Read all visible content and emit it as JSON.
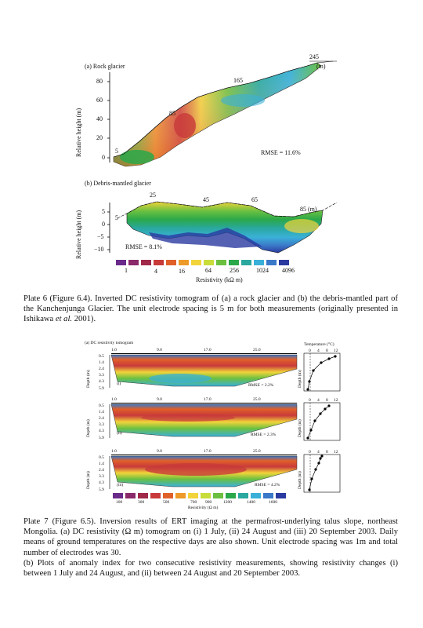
{
  "plate6": {
    "panel_a": {
      "title": "(a) Rock glacier",
      "ylabel": "Relative height (m)",
      "yticks": [
        "80",
        "60",
        "40",
        "20",
        "0"
      ],
      "distance_labels": [
        "5",
        "85",
        "165",
        "245"
      ],
      "unit": "(m)",
      "rmse": "RMSE = 11.6%"
    },
    "panel_b": {
      "title": "(b) Debris-mantled glacier",
      "ylabel": "Relative height (m)",
      "yticks": [
        "5",
        "0",
        "−5",
        "−10"
      ],
      "distance_labels": [
        "5",
        "25",
        "45",
        "65",
        "85 (m)"
      ],
      "rmse": "RMSE = 8.1%"
    },
    "colorbar": {
      "ticks": [
        "1",
        "4",
        "16",
        "64",
        "256",
        "1024",
        "4096"
      ],
      "label": "Resistivity (kΩ m)",
      "colors": [
        "#6a2a8a",
        "#8a2a6a",
        "#a02848",
        "#c83a3a",
        "#e0602a",
        "#ee9a2a",
        "#f2d43a",
        "#c8dc3a",
        "#6cc040",
        "#2aa84a",
        "#2aa8a0",
        "#3ab0d8",
        "#3a78c8",
        "#2a3aa0"
      ]
    },
    "caption_head": "Plate 6 (Figure 6.4).",
    "caption_body": " Inverted DC resistivity tomogram of (a) a rock glacier and (b) the debris-mantled part of the Kanchenjunga Glacier. The unit electrode spacing is 5 m for both measurements (originally presented in Ishikawa ",
    "caption_italic": "et al.",
    "caption_tail": " 2001)."
  },
  "plate7": {
    "panel_title": "(a) DC resistivity tomogram",
    "temp_title": "Temperature (°C)",
    "xticks": [
      "1.0",
      "9.0",
      "17.0",
      "25.0"
    ],
    "depth_label": "Depth (m)",
    "depth_ticks": [
      "0.5",
      "1.4",
      "2.4",
      "3.3",
      "4.3",
      "5.9"
    ],
    "temp_ticks": [
      "0",
      "4",
      "8",
      "12"
    ],
    "rows": [
      {
        "tag": "(i)",
        "rmse": "RMSE = 2.2%"
      },
      {
        "tag": "(ii)",
        "rmse": "RMSE = 2.3%"
      },
      {
        "tag": "(iii)",
        "rmse": "RMSE = 4.2%"
      }
    ],
    "colorbar": {
      "ticks": [
        "100",
        "300",
        "500",
        "700",
        "900",
        "1200",
        "1400",
        "1600"
      ],
      "label": "Resistivity (Ω m)",
      "colors": [
        "#6a2a8a",
        "#8a2a6a",
        "#a02848",
        "#c83a3a",
        "#e0602a",
        "#ee9a2a",
        "#f2d43a",
        "#c8dc3a",
        "#6cc040",
        "#2aa84a",
        "#2aa8a0",
        "#3ab0d8",
        "#3a78c8",
        "#2a3aa0"
      ]
    },
    "caption_head": "Plate 7 (Figure 6.5).",
    "caption_body": " Inversion results of ERT imaging at the permafrost-underlying talus slope, northeast Mongolia. (a) DC resistivity (Ω m) tomogram on (i) 1 July, (ii) 24 August and (iii) 20 September 2003. Daily means of ground temperatures on the respective days are also shown. Unit electrode spacing was 1m and total number of electrodes was 30.",
    "caption_b": "(b) Plots of anomaly index for two consecutive resistivity measurements, showing resistivity changes (i) between 1 July and 24 August, and (ii) between 24 August and 20 September 2003."
  }
}
